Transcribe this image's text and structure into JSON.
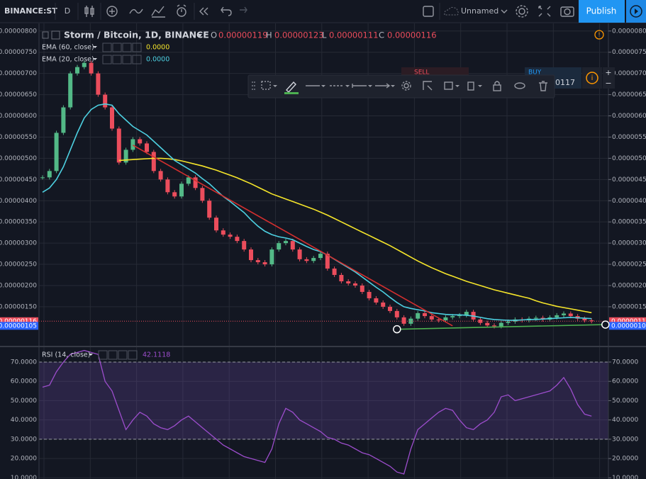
{
  "toolbar": {
    "symbol": "BINANCE:ST",
    "interval": "D",
    "layout_name": "Unnamed",
    "publish": "Publish"
  },
  "trade_widget": {
    "sell": "SELL",
    "buy": "BUY",
    "price_fragment": "0117"
  },
  "chart_data": [
    {
      "type": "candlestick",
      "title": "Storm / Bitcoin, 1D, BINANCE",
      "ohlc_legend": [
        {
          "label": "O",
          "value": "0.00000119"
        },
        {
          "label": "H",
          "value": "0.00000123"
        },
        {
          "label": "L",
          "value": "0.00000111"
        },
        {
          "label": "C",
          "value": "0.00000116"
        }
      ],
      "up_color": "#53b987",
      "down_color": "#eb4d5c",
      "close": [
        4.55e-06,
        4.7e-06,
        5.6e-06,
        6.2e-06,
        7e-06,
        7.15e-06,
        7.25e-06,
        7e-06,
        6.5e-06,
        6.2e-06,
        5.7e-06,
        4.9e-06,
        5.2e-06,
        5.45e-06,
        5.35e-06,
        5.15e-06,
        4.7e-06,
        4.5e-06,
        4.2e-06,
        4.1e-06,
        4.4e-06,
        4.55e-06,
        4.3e-06,
        4e-06,
        3.6e-06,
        3.3e-06,
        3.2e-06,
        3.15e-06,
        3.05e-06,
        2.85e-06,
        2.6e-06,
        2.55e-06,
        2.5e-06,
        2.85e-06,
        3e-06,
        3.05e-06,
        2.85e-06,
        2.62e-06,
        2.58e-06,
        2.65e-06,
        2.75e-06,
        2.4e-06,
        2.25e-06,
        2.1e-06,
        2.05e-06,
        2e-06,
        1.85e-06,
        1.7e-06,
        1.6e-06,
        1.5e-06,
        1.4e-06,
        1.25e-06,
        1.1e-06,
        1.22e-06,
        1.35e-06,
        1.28e-06,
        1.2e-06,
        1.18e-06,
        1.25e-06,
        1.28e-06,
        1.3e-06,
        1.38e-06,
        1.2e-06,
        1.12e-06,
        1.06e-06,
        1.04e-06,
        1.12e-06,
        1.15e-06,
        1.2e-06,
        1.18e-06,
        1.22e-06,
        1.24e-06,
        1.2e-06,
        1.25e-06,
        1.3e-06,
        1.34e-06,
        1.28e-06,
        1.22e-06,
        1.18e-06,
        1.16e-06
      ],
      "ylim": [
        5.8e-07,
        8.18e-06
      ],
      "yticks": [
        {
          "value": 8e-06,
          "label": "0.00000800"
        },
        {
          "value": 7.5e-06,
          "label": "0.00000750"
        },
        {
          "value": 7e-06,
          "label": "0.00000700"
        },
        {
          "value": 6.5e-06,
          "label": "0.00000650"
        },
        {
          "value": 6e-06,
          "label": "0.00000600"
        },
        {
          "value": 5.5e-06,
          "label": "0.00000550"
        },
        {
          "value": 5e-06,
          "label": "0.00000500"
        },
        {
          "value": 4.5e-06,
          "label": "0.00000450"
        },
        {
          "value": 4e-06,
          "label": "0.00000400"
        },
        {
          "value": 3.5e-06,
          "label": "0.00000350"
        },
        {
          "value": 3e-06,
          "label": "0.00000300"
        },
        {
          "value": 2.5e-06,
          "label": "0.00000250"
        },
        {
          "value": 2e-06,
          "label": "0.00000200"
        },
        {
          "value": 1.5e-06,
          "label": "0.00000150"
        }
      ],
      "grid": true,
      "indicators": [
        {
          "name": "EMA (60, close)",
          "value_label": "0.0000",
          "color": "#f5e52a",
          "values": [
            null,
            null,
            null,
            null,
            null,
            null,
            null,
            null,
            null,
            null,
            null,
            4.95e-06,
            4.96e-06,
            4.97e-06,
            4.98e-06,
            4.99e-06,
            5e-06,
            5e-06,
            4.99e-06,
            4.97e-06,
            4.94e-06,
            4.9e-06,
            4.86e-06,
            4.82e-06,
            4.77e-06,
            4.72e-06,
            4.66e-06,
            4.6e-06,
            4.54e-06,
            4.47e-06,
            4.4e-06,
            4.32e-06,
            4.24e-06,
            4.16e-06,
            4.1e-06,
            4.04e-06,
            3.98e-06,
            3.92e-06,
            3.86e-06,
            3.8e-06,
            3.73e-06,
            3.66e-06,
            3.58e-06,
            3.5e-06,
            3.42e-06,
            3.34e-06,
            3.26e-06,
            3.18e-06,
            3.1e-06,
            3.02e-06,
            2.94e-06,
            2.85e-06,
            2.76e-06,
            2.67e-06,
            2.58e-06,
            2.5e-06,
            2.42e-06,
            2.35e-06,
            2.28e-06,
            2.22e-06,
            2.16e-06,
            2.1e-06,
            2.05e-06,
            2e-06,
            1.95e-06,
            1.9e-06,
            1.86e-06,
            1.82e-06,
            1.78e-06,
            1.74e-06,
            1.7e-06,
            1.64e-06,
            1.59e-06,
            1.55e-06,
            1.51e-06,
            1.48e-06,
            1.45e-06,
            1.42e-06,
            1.39e-06,
            1.36e-06
          ]
        },
        {
          "name": "EMA (20, close)",
          "value_label": "0.0000",
          "color": "#4dd0e1",
          "values": [
            4.2e-06,
            4.3e-06,
            4.5e-06,
            4.8e-06,
            5.2e-06,
            5.6e-06,
            5.95e-06,
            6.15e-06,
            6.25e-06,
            6.28e-06,
            6.25e-06,
            6.05e-06,
            5.9e-06,
            5.75e-06,
            5.65e-06,
            5.55e-06,
            5.4e-06,
            5.25e-06,
            5.1e-06,
            4.95e-06,
            4.85e-06,
            4.75e-06,
            4.65e-06,
            4.52e-06,
            4.4e-06,
            4.25e-06,
            4.1e-06,
            3.98e-06,
            3.85e-06,
            3.72e-06,
            3.55e-06,
            3.4e-06,
            3.28e-06,
            3.2e-06,
            3.15e-06,
            3.12e-06,
            3.08e-06,
            3e-06,
            2.92e-06,
            2.85e-06,
            2.8e-06,
            2.72e-06,
            2.62e-06,
            2.52e-06,
            2.42e-06,
            2.32e-06,
            2.2e-06,
            2.08e-06,
            1.96e-06,
            1.85e-06,
            1.72e-06,
            1.6e-06,
            1.5e-06,
            1.46e-06,
            1.43e-06,
            1.4e-06,
            1.36e-06,
            1.34e-06,
            1.32e-06,
            1.31e-06,
            1.31e-06,
            1.3e-06,
            1.28e-06,
            1.25e-06,
            1.22e-06,
            1.2e-06,
            1.19e-06,
            1.18e-06,
            1.18e-06,
            1.19e-06,
            1.2e-06,
            1.2e-06,
            1.21e-06,
            1.22e-06,
            1.23e-06,
            1.24e-06,
            1.25e-06,
            1.24e-06,
            1.23e-06,
            1.22e-06
          ]
        }
      ],
      "price_labels": [
        {
          "value": 1.16e-06,
          "label": "0.00000116",
          "color": "#eb4d5c"
        },
        {
          "value": 1.05e-06,
          "label": "0.00000105",
          "color": "#2962ff"
        }
      ],
      "trendlines": [
        {
          "color": "#d32f2f",
          "points": [
            [
              13,
              5.31e-06
            ],
            [
              59,
              1.05e-06
            ]
          ]
        },
        {
          "color": "#4caf50",
          "points": [
            [
              51,
              9.7e-07
            ],
            [
              81,
              1.08e-06
            ]
          ]
        }
      ]
    },
    {
      "type": "line",
      "name": "RSI (14, close)",
      "value_label": "42.1118",
      "color": "#9c4dcc",
      "values": [
        57,
        58,
        65,
        70,
        74,
        75,
        76,
        75,
        74,
        60,
        55,
        45,
        35,
        40,
        44,
        42,
        38,
        36,
        35,
        37,
        40,
        42,
        39,
        36,
        33,
        30,
        27,
        25,
        23,
        21,
        20,
        19,
        18,
        25,
        38,
        46,
        44,
        40,
        38,
        36,
        34,
        31,
        30,
        28,
        27,
        25,
        23,
        22,
        20,
        18,
        16,
        13,
        12,
        25,
        35,
        38,
        41,
        44,
        46,
        45,
        40,
        36,
        35,
        38,
        40,
        44,
        52,
        53,
        50,
        51,
        52,
        53,
        54,
        55,
        58,
        62,
        56,
        48,
        43,
        42
      ],
      "band": [
        30,
        70
      ],
      "ylim": [
        9.4,
        77.7
      ],
      "yticks": [
        {
          "value": 70,
          "label": "70.0000"
        },
        {
          "value": 60,
          "label": "60.0000"
        },
        {
          "value": 50,
          "label": "50.0000"
        },
        {
          "value": 40,
          "label": "40.0000"
        },
        {
          "value": 30,
          "label": "30.0000"
        },
        {
          "value": 20,
          "label": "20.0000"
        },
        {
          "value": 10,
          "label": "10.0000"
        }
      ]
    }
  ]
}
